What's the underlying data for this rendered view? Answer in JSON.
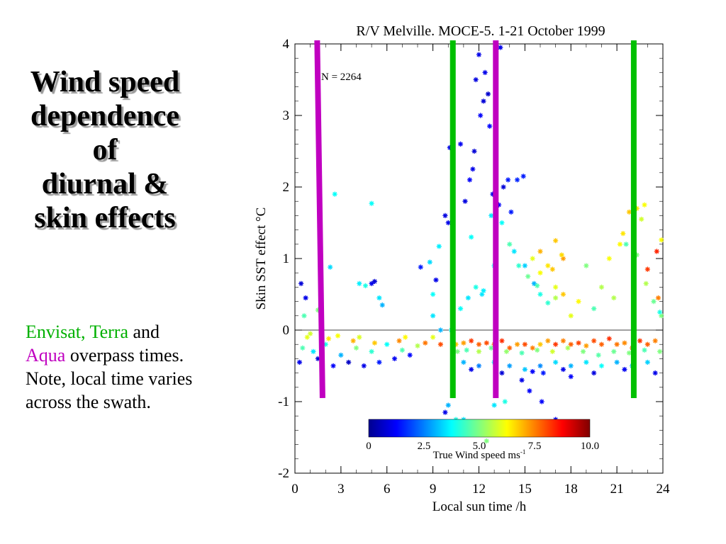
{
  "slide": {
    "title_lines": [
      "Wind speed",
      "dependence",
      "of",
      "diurnal &",
      "skin effects"
    ],
    "note": {
      "envisat_terra": "Envisat, Terra",
      "and": " and",
      "aqua": "Aqua",
      "rest": " overpass times. Note, local time varies across the swath."
    }
  },
  "colors": {
    "envisat_terra": "#00b000",
    "aqua": "#c000c0",
    "overpass_green": "#00c000",
    "overpass_magenta": "#c000c0"
  },
  "chart_data": {
    "type": "scatter",
    "title": "R/V Melville. MOCE-5. 1-21 October 1999",
    "annotation": "N = 2264",
    "xlabel": "Local sun time  /h",
    "ylabel": "Skin SST effect °C",
    "xlim": [
      0,
      24
    ],
    "ylim": [
      -2,
      4
    ],
    "xticks": [
      0,
      3,
      6,
      9,
      12,
      15,
      18,
      21,
      24
    ],
    "yticks": [
      -2,
      -1,
      0,
      1,
      2,
      3,
      4
    ],
    "reference_line_y": 0,
    "colorbar": {
      "label": "True Wind speed ms",
      "label_superscript": "-1",
      "range": [
        0,
        10
      ],
      "ticks": [
        "0",
        "2.5",
        "5.0",
        "7.5",
        "10.0"
      ],
      "colormap": [
        "#00008f",
        "#0000ff",
        "#0080ff",
        "#00ffff",
        "#80ff80",
        "#ffff00",
        "#ff8000",
        "#ff0000",
        "#800000"
      ]
    },
    "overpass_lines": [
      {
        "satellite": "Aqua",
        "color": "#c000c0",
        "x": [
          1.45,
          1.8
        ],
        "y": [
          4.05,
          -0.95
        ]
      },
      {
        "satellite": "Envisat, Terra",
        "color": "#00c000",
        "x": [
          10.3,
          10.3
        ],
        "y": [
          4.05,
          -0.95
        ]
      },
      {
        "satellite": "Aqua",
        "color": "#c000c0",
        "x": [
          13.1,
          13.1
        ],
        "y": [
          4.05,
          -0.95
        ]
      },
      {
        "satellite": "Envisat, Terra",
        "color": "#00c000",
        "x": [
          22.1,
          22.1
        ],
        "y": [
          4.05,
          -0.95
        ]
      }
    ],
    "series": [
      {
        "point_format": "[local sun time h, skin SST effect °C, wind speed m/s]",
        "points": [
          [
            0.5,
            -0.25,
            4.5
          ],
          [
            1.2,
            -0.3,
            3.5
          ],
          [
            2.0,
            -0.2,
            4.0
          ],
          [
            3.0,
            -0.35,
            3.0
          ],
          [
            4.0,
            -0.25,
            5.0
          ],
          [
            5.0,
            -0.3,
            4.2
          ],
          [
            6.0,
            -0.2,
            3.8
          ],
          [
            7.0,
            -0.28,
            4.5
          ],
          [
            8.0,
            -0.22,
            5.5
          ],
          [
            0.3,
            -0.45,
            1.0
          ],
          [
            1.5,
            -0.4,
            0.8
          ],
          [
            2.5,
            -0.5,
            1.2
          ],
          [
            3.5,
            -0.45,
            0.6
          ],
          [
            4.5,
            -0.5,
            1.0
          ],
          [
            5.5,
            -0.45,
            1.5
          ],
          [
            6.5,
            -0.4,
            1.1
          ],
          [
            7.5,
            -0.35,
            1.3
          ],
          [
            0.8,
            -0.1,
            6.0
          ],
          [
            2.2,
            -0.12,
            6.5
          ],
          [
            3.8,
            -0.15,
            7.0
          ],
          [
            5.2,
            -0.18,
            6.8
          ],
          [
            6.8,
            -0.15,
            7.4
          ],
          [
            8.5,
            -0.18,
            7.6
          ],
          [
            9.5,
            -0.2,
            8.0
          ],
          [
            1.0,
            -0.05,
            5.8
          ],
          [
            2.8,
            -0.08,
            6.2
          ],
          [
            4.2,
            -0.1,
            5.9
          ],
          [
            7.2,
            -0.1,
            6.3
          ],
          [
            9.0,
            -0.1,
            6.0
          ],
          [
            0.4,
            0.65,
            0.8
          ],
          [
            0.7,
            0.45,
            1.0
          ],
          [
            0.6,
            0.2,
            4.5
          ],
          [
            1.5,
            0.28,
            5.0
          ],
          [
            2.6,
            1.9,
            3.8
          ],
          [
            2.3,
            0.88,
            3.4
          ],
          [
            5.0,
            1.77,
            3.8
          ],
          [
            4.2,
            0.65,
            3.6
          ],
          [
            4.6,
            0.62,
            4.0
          ],
          [
            5.0,
            0.65,
            1.0
          ],
          [
            5.2,
            0.68,
            0.8
          ],
          [
            5.5,
            0.45,
            3.5
          ],
          [
            5.7,
            0.35,
            3.0
          ],
          [
            8.2,
            0.88,
            1.5
          ],
          [
            8.8,
            0.95,
            3.4
          ],
          [
            9.0,
            0.5,
            3.8
          ],
          [
            9.4,
            1.17,
            3.6
          ],
          [
            9.2,
            0.7,
            1.0
          ],
          [
            9.8,
            1.6,
            0.9
          ],
          [
            10.0,
            1.5,
            1.0
          ],
          [
            10.1,
            2.55,
            1.0
          ],
          [
            10.3,
            2.0,
            0.8
          ],
          [
            10.8,
            2.6,
            1.1
          ],
          [
            11.1,
            1.8,
            0.9
          ],
          [
            11.4,
            2.1,
            1.2
          ],
          [
            11.6,
            2.25,
            1.0
          ],
          [
            11.7,
            2.5,
            0.8
          ],
          [
            11.8,
            3.5,
            0.9
          ],
          [
            12.0,
            3.85,
            1.0
          ],
          [
            12.1,
            3.0,
            1.2
          ],
          [
            12.3,
            3.2,
            0.8
          ],
          [
            12.4,
            3.6,
            1.0
          ],
          [
            12.6,
            3.3,
            0.7
          ],
          [
            12.7,
            2.85,
            1.3
          ],
          [
            13.4,
            3.95,
            1.0
          ],
          [
            12.9,
            1.9,
            1.0
          ],
          [
            13.3,
            1.75,
            1.2
          ],
          [
            13.6,
            2.0,
            0.8
          ],
          [
            13.9,
            2.1,
            1.5
          ],
          [
            14.1,
            1.65,
            1.5
          ],
          [
            14.5,
            2.1,
            1.6
          ],
          [
            14.9,
            2.15,
            1.5
          ],
          [
            12.8,
            1.6,
            3.5
          ],
          [
            13.5,
            1.5,
            3.8
          ],
          [
            14.3,
            1.1,
            3.5
          ],
          [
            15.0,
            0.9,
            3.3
          ],
          [
            15.6,
            0.65,
            3.0
          ],
          [
            14.0,
            1.2,
            4.5
          ],
          [
            14.6,
            0.9,
            4.2
          ],
          [
            15.2,
            0.75,
            4.8
          ],
          [
            15.8,
            0.62,
            4.5
          ],
          [
            13.0,
            0.9,
            3.8
          ],
          [
            12.2,
            0.5,
            3.5
          ],
          [
            11.5,
            1.3,
            3.8
          ],
          [
            16.0,
            0.5,
            4.0
          ],
          [
            16.5,
            0.38,
            4.2
          ],
          [
            17.0,
            0.45,
            5.5
          ],
          [
            15.5,
            1.0,
            6.0
          ],
          [
            16.0,
            0.8,
            6.2
          ],
          [
            16.5,
            0.9,
            6.5
          ],
          [
            17.0,
            0.6,
            6.0
          ],
          [
            17.5,
            0.5,
            6.8
          ],
          [
            18.0,
            0.2,
            6.0
          ],
          [
            18.5,
            0.4,
            6.3
          ],
          [
            16.0,
            1.1,
            7.0
          ],
          [
            17.0,
            1.25,
            6.8
          ],
          [
            17.5,
            1.0,
            7.2
          ],
          [
            16.8,
            0.85,
            6.8
          ],
          [
            17.4,
            1.05,
            6.6
          ],
          [
            19.0,
            0.9,
            5.0
          ],
          [
            19.5,
            0.3,
            4.5
          ],
          [
            20.0,
            0.6,
            5.5
          ],
          [
            20.5,
            1.0,
            6.2
          ],
          [
            20.8,
            0.45,
            5.5
          ],
          [
            21.2,
            1.2,
            6.3
          ],
          [
            21.4,
            1.35,
            6.5
          ],
          [
            21.8,
            1.65,
            6.8
          ],
          [
            22.3,
            1.7,
            6.5
          ],
          [
            22.6,
            1.55,
            5.8
          ],
          [
            22.8,
            1.75,
            6.2
          ],
          [
            23.0,
            0.85,
            8.2
          ],
          [
            23.6,
            1.1,
            8.4
          ],
          [
            23.9,
            1.26,
            6.2
          ],
          [
            23.9,
            0.2,
            5.0
          ],
          [
            23.7,
            0.45,
            7.5
          ],
          [
            21.6,
            1.2,
            4.5
          ],
          [
            22.3,
            1.05,
            5.0
          ],
          [
            22.9,
            0.65,
            5.5
          ],
          [
            23.4,
            0.4,
            4.8
          ],
          [
            23.8,
            0.25,
            4.0
          ],
          [
            10.5,
            -0.2,
            6.8
          ],
          [
            11.0,
            -0.18,
            7.2
          ],
          [
            11.5,
            -0.15,
            8.2
          ],
          [
            12.0,
            -0.2,
            7.8
          ],
          [
            12.5,
            -0.18,
            8.0
          ],
          [
            13.0,
            -0.2,
            7.6
          ],
          [
            13.5,
            -0.15,
            8.3
          ],
          [
            14.0,
            -0.25,
            7.8
          ],
          [
            14.5,
            -0.2,
            7.2
          ],
          [
            15.0,
            -0.2,
            8.0
          ],
          [
            15.5,
            -0.25,
            7.5
          ],
          [
            16.0,
            -0.2,
            6.8
          ],
          [
            16.5,
            -0.15,
            7.2
          ],
          [
            17.0,
            -0.2,
            8.2
          ],
          [
            17.5,
            -0.15,
            7.5
          ],
          [
            18.0,
            -0.2,
            7.8
          ],
          [
            18.5,
            -0.18,
            8.1
          ],
          [
            19.0,
            -0.22,
            7.2
          ],
          [
            19.5,
            -0.15,
            8.0
          ],
          [
            20.0,
            -0.2,
            7.8
          ],
          [
            20.5,
            -0.12,
            8.3
          ],
          [
            21.0,
            -0.2,
            7.6
          ],
          [
            21.5,
            -0.18,
            7.4
          ],
          [
            22.0,
            -0.25,
            8.0
          ],
          [
            22.5,
            -0.15,
            8.2
          ],
          [
            23.0,
            -0.2,
            7.8
          ],
          [
            23.5,
            -0.15,
            7.5
          ],
          [
            10.6,
            -0.3,
            5.0
          ],
          [
            11.2,
            -0.28,
            4.5
          ],
          [
            12.0,
            -0.3,
            5.5
          ],
          [
            12.8,
            -0.25,
            4.8
          ],
          [
            13.8,
            -0.3,
            5.2
          ],
          [
            14.8,
            -0.32,
            4.5
          ],
          [
            15.8,
            -0.28,
            5.0
          ],
          [
            16.8,
            -0.3,
            5.8
          ],
          [
            17.8,
            -0.25,
            5.4
          ],
          [
            18.8,
            -0.3,
            5.0
          ],
          [
            19.8,
            -0.35,
            4.6
          ],
          [
            20.8,
            -0.3,
            4.8
          ],
          [
            21.8,
            -0.32,
            5.0
          ],
          [
            22.8,
            -0.28,
            4.5
          ],
          [
            23.8,
            -0.3,
            5.0
          ],
          [
            11.0,
            -0.45,
            3.0
          ],
          [
            12.0,
            -0.5,
            2.5
          ],
          [
            13.0,
            -0.45,
            3.5
          ],
          [
            14.0,
            -0.5,
            2.8
          ],
          [
            15.0,
            -0.55,
            3.2
          ],
          [
            16.0,
            -0.5,
            2.6
          ],
          [
            17.0,
            -0.45,
            3.4
          ],
          [
            18.0,
            -0.5,
            3.0
          ],
          [
            19.0,
            -0.45,
            3.5
          ],
          [
            20.0,
            -0.5,
            3.8
          ],
          [
            21.0,
            -0.45,
            3.0
          ],
          [
            22.0,
            -0.5,
            2.9
          ],
          [
            23.0,
            -0.45,
            3.3
          ],
          [
            11.5,
            -0.55,
            1.0
          ],
          [
            13.5,
            -0.6,
            0.8
          ],
          [
            15.5,
            -0.58,
            1.2
          ],
          [
            17.5,
            -0.55,
            1.0
          ],
          [
            19.5,
            -0.6,
            0.9
          ],
          [
            21.5,
            -0.55,
            1.1
          ],
          [
            23.5,
            -0.6,
            1.0
          ],
          [
            11.0,
            -1.25,
            3.5
          ],
          [
            14.8,
            -0.7,
            1.0
          ],
          [
            15.3,
            -0.85,
            1.2
          ],
          [
            16.2,
            -0.6,
            1.5
          ],
          [
            17.0,
            -1.25,
            1.0
          ],
          [
            18.0,
            -0.65,
            1.2
          ],
          [
            10.0,
            -1.05,
            3.0
          ],
          [
            9.8,
            -1.15,
            1.0
          ],
          [
            10.5,
            -1.25,
            4.0
          ],
          [
            12.5,
            -1.55,
            5.0
          ],
          [
            13.0,
            -1.05,
            3.5
          ],
          [
            13.7,
            -1.0,
            4.0
          ],
          [
            16.1,
            -1.0,
            1.2
          ],
          [
            10.2,
            0.0,
            3.5
          ],
          [
            10.8,
            0.3,
            3.8
          ],
          [
            11.3,
            0.45,
            3.5
          ],
          [
            11.8,
            0.6,
            4.0
          ],
          [
            12.3,
            0.55,
            3.6
          ],
          [
            9.5,
            0.0,
            3.0
          ],
          [
            9.0,
            0.2,
            3.5
          ]
        ]
      }
    ]
  }
}
